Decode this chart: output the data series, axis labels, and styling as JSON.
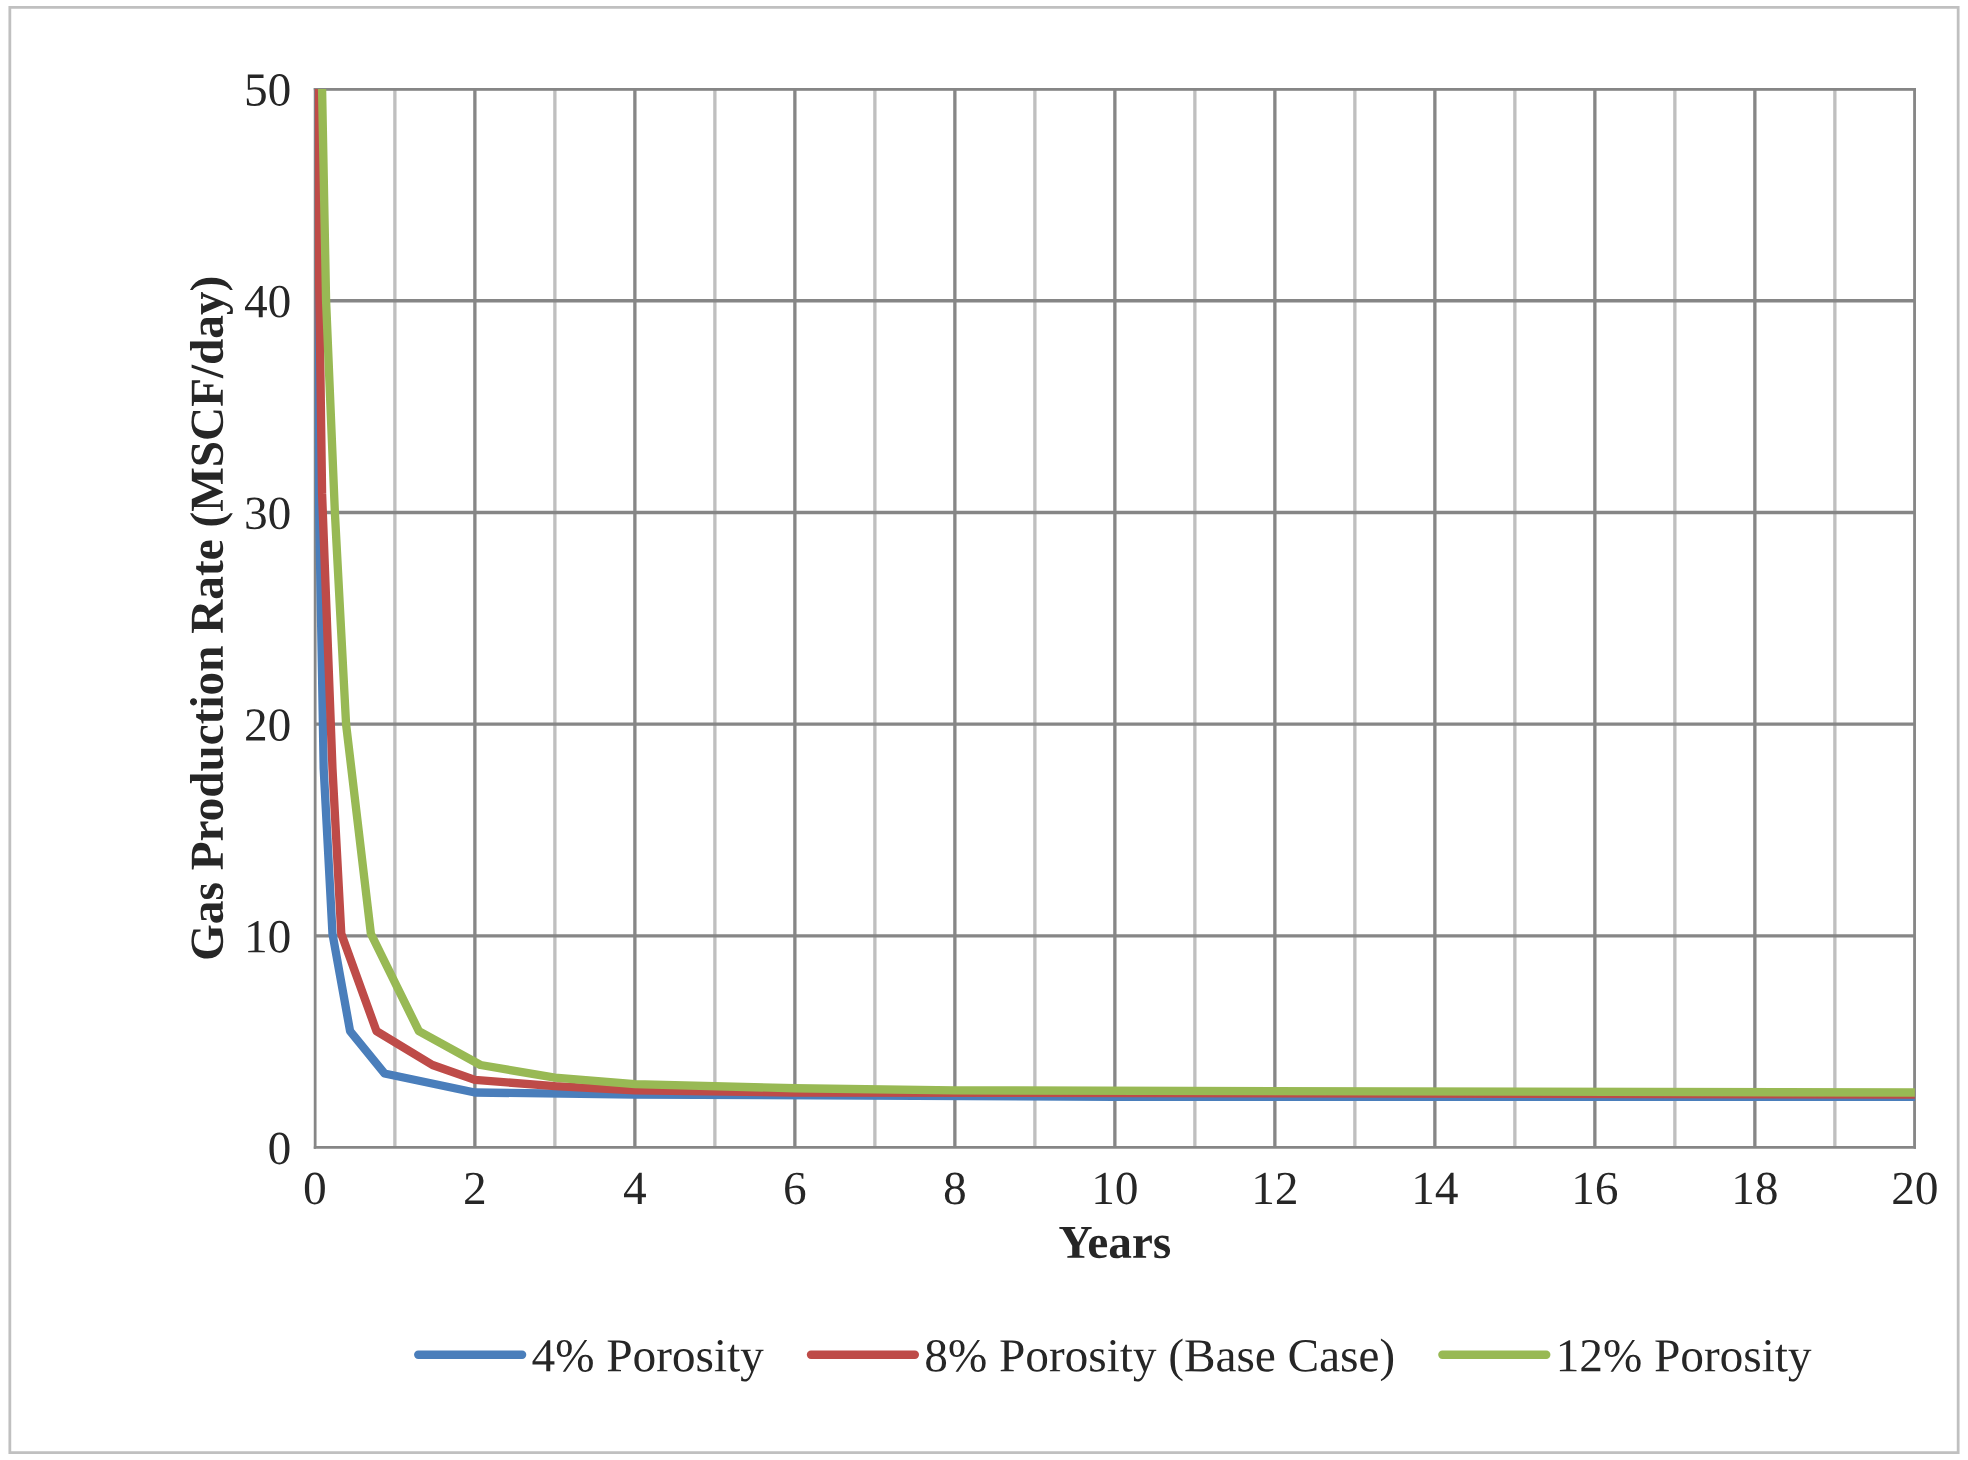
{
  "chart_data": {
    "type": "line",
    "xlabel": "Years",
    "ylabel": "Gas Production Rate (MSCF/day)",
    "xlim": [
      0,
      20
    ],
    "ylim": [
      0,
      50
    ],
    "xticks": [
      0,
      {
        "value": 1,
        "label": null
      },
      2,
      {
        "value": 3,
        "label": null
      },
      4,
      {
        "value": 5,
        "label": null
      },
      6,
      {
        "value": 7,
        "label": null
      },
      8,
      {
        "value": 9,
        "label": null
      },
      10,
      {
        "value": 11,
        "label": null
      },
      12,
      {
        "value": 13,
        "label": null
      },
      14,
      {
        "value": 15,
        "label": null
      },
      16,
      {
        "value": 17,
        "label": null
      },
      18,
      {
        "value": 19,
        "label": null
      },
      20
    ],
    "yticks": [
      0,
      10,
      20,
      30,
      40,
      50
    ],
    "grid": true,
    "legend": "bottom",
    "marker": "none",
    "line_style": "solid",
    "series": [
      {
        "name": "4% Porosity",
        "color": "#4a7ebb",
        "x": [
          0,
          0.05,
          0.11,
          0.22,
          0.44,
          0.87,
          2,
          4,
          10,
          20
        ],
        "values": [
          50,
          30.9,
          17.9,
          10.1,
          5.5,
          3.5,
          2.6,
          2.5,
          2.4,
          2.4
        ]
      },
      {
        "name": "8% Porosity (Base Case)",
        "color": "#be4b48",
        "x": [
          0.02,
          0.09,
          0.22,
          0.33,
          0.77,
          1.47,
          2,
          3,
          4,
          6,
          20
        ],
        "values": [
          50,
          30.9,
          17.9,
          10.1,
          5.5,
          3.9,
          3.2,
          2.9,
          2.7,
          2.6,
          2.5
        ]
      },
      {
        "name": "12% Porosity",
        "color": "#98b954",
        "x": [
          0.09,
          0.14,
          0.25,
          0.39,
          0.7,
          1.3,
          2.07,
          3,
          4,
          6,
          8,
          20
        ],
        "values": [
          50,
          40,
          30,
          20,
          10.1,
          5.5,
          3.9,
          3.3,
          3.0,
          2.8,
          2.7,
          2.6
        ]
      }
    ]
  }
}
